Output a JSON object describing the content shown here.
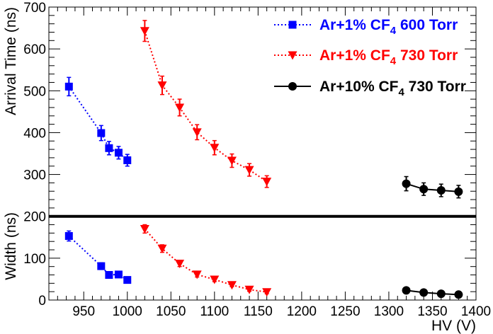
{
  "chart_data": {
    "type": "scatter",
    "xlabel": "HV (V)",
    "ylabel_top": "Arrival Time (ns)",
    "ylabel_bottom": "Width (ns)",
    "xlim": [
      910,
      1400
    ],
    "ylim": [
      0,
      700
    ],
    "x_ticks": [
      950,
      1000,
      1050,
      1100,
      1150,
      1200,
      1250,
      1300,
      1350,
      1400
    ],
    "y_ticks": [
      0,
      100,
      200,
      300,
      400,
      500,
      600,
      700
    ],
    "divider_y": 200,
    "legend_position": "top-right",
    "series": [
      {
        "name": "Ar+1% CF4 600 Torr",
        "legend_prefix": "Ar+1% CF",
        "legend_sub": "4",
        "legend_suffix": " 600 Torr",
        "color": "#0000ff",
        "marker": "square",
        "line": "dotted",
        "arrival": [
          {
            "x": 933,
            "y": 510,
            "err": 22
          },
          {
            "x": 970,
            "y": 399,
            "err": 18
          },
          {
            "x": 979,
            "y": 363,
            "err": 16
          },
          {
            "x": 990,
            "y": 352,
            "err": 15
          },
          {
            "x": 1000,
            "y": 334,
            "err": 14
          }
        ],
        "width": [
          {
            "x": 933,
            "y": 153,
            "err": 12
          },
          {
            "x": 970,
            "y": 81,
            "err": 8
          },
          {
            "x": 979,
            "y": 60,
            "err": 7
          },
          {
            "x": 990,
            "y": 61,
            "err": 7
          },
          {
            "x": 1000,
            "y": 48,
            "err": 6
          }
        ]
      },
      {
        "name": "Ar+1% CF4 730 Torr",
        "legend_prefix": "Ar+1% CF",
        "legend_sub": "4",
        "legend_suffix": " 730 Torr",
        "color": "#ff0000",
        "marker": "triangle-down",
        "line": "dotted",
        "arrival": [
          {
            "x": 1020,
            "y": 643,
            "err": 25
          },
          {
            "x": 1040,
            "y": 513,
            "err": 22
          },
          {
            "x": 1060,
            "y": 460,
            "err": 20
          },
          {
            "x": 1080,
            "y": 401,
            "err": 18
          },
          {
            "x": 1100,
            "y": 364,
            "err": 17
          },
          {
            "x": 1120,
            "y": 333,
            "err": 16
          },
          {
            "x": 1140,
            "y": 311,
            "err": 15
          },
          {
            "x": 1160,
            "y": 283,
            "err": 14
          }
        ],
        "width": [
          {
            "x": 1020,
            "y": 170,
            "err": 10
          },
          {
            "x": 1040,
            "y": 123,
            "err": 9
          },
          {
            "x": 1060,
            "y": 87,
            "err": 7
          },
          {
            "x": 1080,
            "y": 61,
            "err": 6
          },
          {
            "x": 1100,
            "y": 49,
            "err": 5
          },
          {
            "x": 1120,
            "y": 36,
            "err": 4
          },
          {
            "x": 1140,
            "y": 25,
            "err": 4
          },
          {
            "x": 1160,
            "y": 19,
            "err": 4
          }
        ]
      },
      {
        "name": "Ar+10% CF4 730 Torr",
        "legend_prefix": "Ar+10% CF",
        "legend_sub": "4",
        "legend_suffix": " 730 Torr",
        "color": "#000000",
        "marker": "circle",
        "line": "solid",
        "arrival": [
          {
            "x": 1320,
            "y": 278,
            "err": 17
          },
          {
            "x": 1340,
            "y": 265,
            "err": 15
          },
          {
            "x": 1360,
            "y": 262,
            "err": 15
          },
          {
            "x": 1380,
            "y": 259,
            "err": 15
          }
        ],
        "width": [
          {
            "x": 1320,
            "y": 23,
            "err": 4
          },
          {
            "x": 1340,
            "y": 18,
            "err": 4
          },
          {
            "x": 1360,
            "y": 15,
            "err": 4
          },
          {
            "x": 1380,
            "y": 13,
            "err": 4
          }
        ]
      }
    ]
  }
}
